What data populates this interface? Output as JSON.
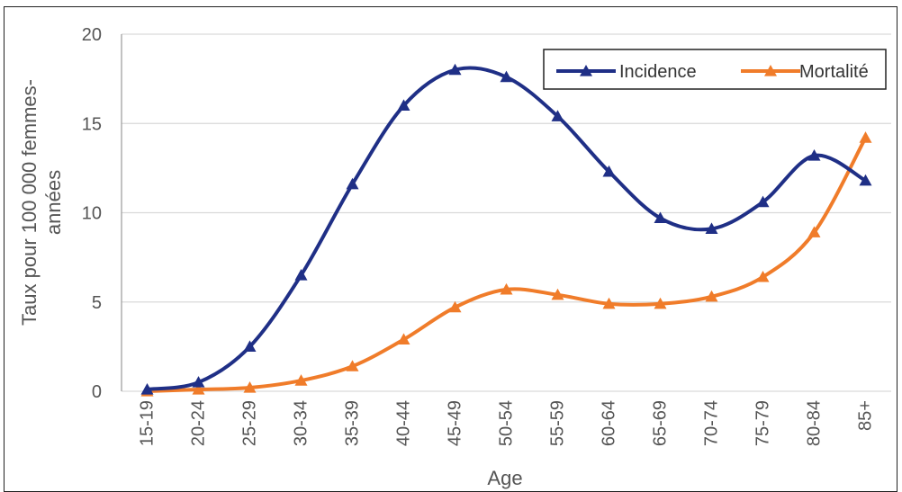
{
  "chart_data": {
    "type": "line",
    "categories": [
      "15-19",
      "20-24",
      "25-29",
      "30-34",
      "35-39",
      "40-44",
      "45-49",
      "50-54",
      "55-59",
      "60-64",
      "65-69",
      "70-74",
      "75-79",
      "80-84",
      "85+"
    ],
    "series": [
      {
        "name": "Incidence",
        "color": "#1f2f86",
        "marker": "triangle",
        "values": [
          0.1,
          0.5,
          2.5,
          6.5,
          11.6,
          16.0,
          18.0,
          17.6,
          15.4,
          12.3,
          9.7,
          9.1,
          10.6,
          13.2,
          11.8
        ]
      },
      {
        "name": "Mortalité",
        "color": "#f07c2a",
        "marker": "triangle",
        "values": [
          0.0,
          0.1,
          0.2,
          0.6,
          1.4,
          2.9,
          4.7,
          5.7,
          5.4,
          4.9,
          4.9,
          5.3,
          6.4,
          8.9,
          14.2
        ]
      }
    ],
    "yticks": [
      "0",
      "5",
      "10",
      "15",
      "20"
    ],
    "ylim": [
      0,
      20
    ],
    "xlabel": "Age",
    "ylabel": "Taux pour 100 000 femmes-années",
    "ylabel_lines": [
      "Taux pour 100 000 femmes-",
      "années"
    ],
    "grid": "horizontal",
    "legend_position": "top-right",
    "smooth": true
  }
}
